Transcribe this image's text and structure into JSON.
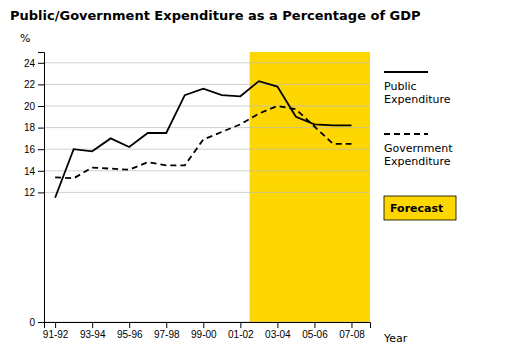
{
  "chart_data": {
    "type": "line",
    "title": "Public/Government Expenditure as a Percentage of GDP",
    "y_label": "%",
    "x_label": "Year",
    "x": [
      0,
      0.5,
      1.0,
      1.5,
      2.0,
      2.5,
      3.0,
      3.5,
      4.0,
      4.5,
      5.0,
      5.5,
      6.0,
      6.5,
      7.0,
      7.5,
      8.0
    ],
    "xlim": [
      -0.3,
      8.5
    ],
    "xticks": [
      {
        "value": 0,
        "label": "91-92"
      },
      {
        "value": 1,
        "label": "93-94"
      },
      {
        "value": 2,
        "label": "95-96"
      },
      {
        "value": 3,
        "label": "97-98"
      },
      {
        "value": 4,
        "label": "99-00"
      },
      {
        "value": 5,
        "label": "01-02"
      },
      {
        "value": 6,
        "label": "03-04"
      },
      {
        "value": 7,
        "label": "05-06"
      },
      {
        "value": 8,
        "label": "07-08"
      }
    ],
    "ylim": [
      0,
      25
    ],
    "yticks": [
      0,
      12,
      14,
      16,
      18,
      20,
      22,
      24
    ],
    "grid": true,
    "legend": "right",
    "series": [
      {
        "name": "Public\nExpenditure",
        "color": "#000000",
        "line_style": "solid",
        "values": [
          11.5,
          16.0,
          15.8,
          17.0,
          16.2,
          17.5,
          17.5,
          21.0,
          21.6,
          21.0,
          20.9,
          22.3,
          21.8,
          19.0,
          18.3,
          18.2,
          18.2
        ]
      },
      {
        "name": "Government\nExpenditure",
        "color": "#000000",
        "line_style": "dashed",
        "values": [
          13.4,
          13.3,
          14.3,
          14.2,
          14.1,
          14.8,
          14.5,
          14.5,
          16.9,
          17.6,
          18.3,
          19.3,
          20.0,
          19.7,
          18.1,
          16.5,
          16.5
        ]
      }
    ],
    "shaded_region": {
      "x": [
        5.25,
        8.5
      ],
      "label": "Forecast",
      "color": "#FFD700"
    }
  }
}
